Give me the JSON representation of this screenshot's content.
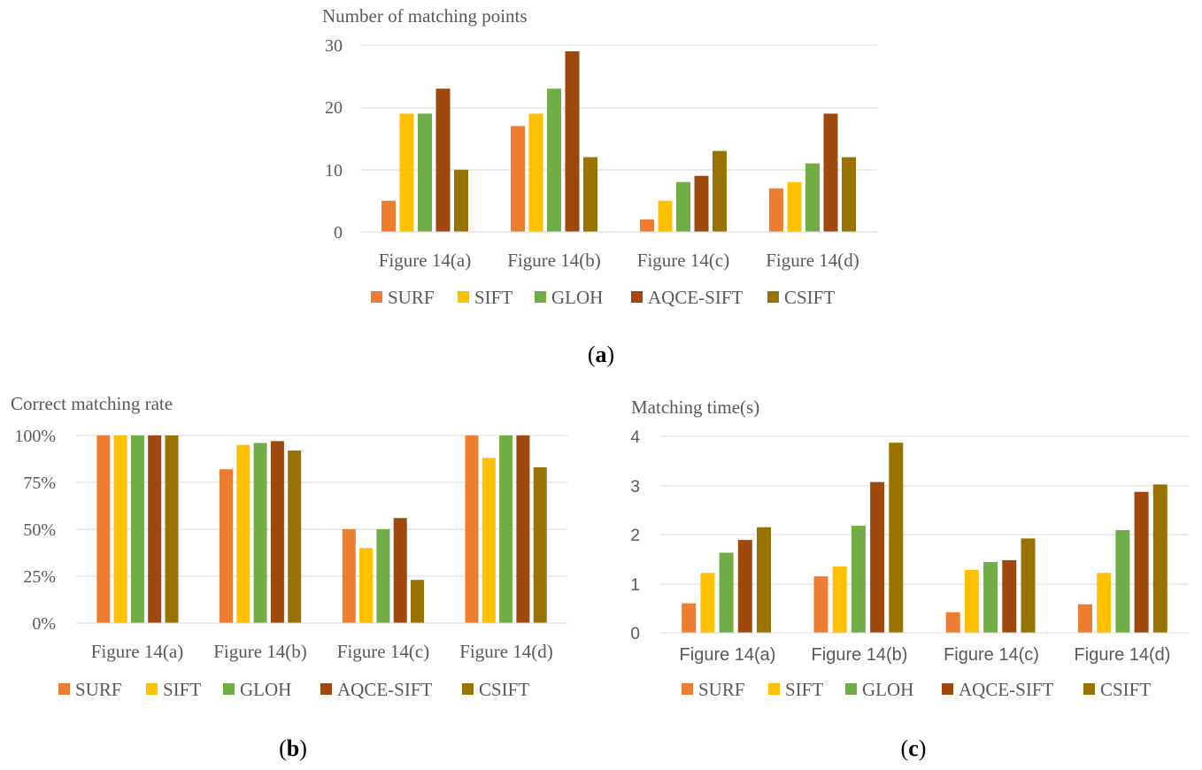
{
  "chart_data": [
    {
      "id": "a",
      "type": "bar",
      "title": "Number of matching points",
      "caption_letter": "a",
      "categories": [
        "Figure 14(a)",
        "Figure 14(b)",
        "Figure 14(c)",
        "Figure 14(d)"
      ],
      "yticks": [
        "0",
        "10",
        "20",
        "30"
      ],
      "ylim": [
        0,
        30
      ],
      "series": [
        {
          "name": "SURF",
          "color": "#ED7D31",
          "values": [
            5,
            17,
            2,
            7
          ]
        },
        {
          "name": "SIFT",
          "color": "#FFC000",
          "values": [
            19,
            19,
            5,
            8
          ]
        },
        {
          "name": "GLOH",
          "color": "#70AD47",
          "values": [
            19,
            23,
            8,
            11
          ]
        },
        {
          "name": "AQCE-SIFT",
          "color": "#9E480E",
          "values": [
            23,
            29,
            9,
            19
          ]
        },
        {
          "name": "CSIFT",
          "color": "#997300",
          "values": [
            10,
            12,
            13,
            12
          ]
        }
      ],
      "legend_position": "bottom",
      "grid": true
    },
    {
      "id": "b",
      "type": "bar",
      "title": "Correct matching rate",
      "caption_letter": "b",
      "categories": [
        "Figure 14(a)",
        "Figure 14(b)",
        "Figure 14(c)",
        "Figure 14(d)"
      ],
      "yticks": [
        "0%",
        "25%",
        "50%",
        "75%",
        "100%"
      ],
      "ylim": [
        0,
        100
      ],
      "series": [
        {
          "name": "SURF",
          "color": "#ED7D31",
          "values": [
            100,
            82,
            50,
            100
          ]
        },
        {
          "name": "SIFT",
          "color": "#FFC000",
          "values": [
            100,
            95,
            40,
            88
          ]
        },
        {
          "name": "GLOH",
          "color": "#70AD47",
          "values": [
            100,
            96,
            50,
            100
          ]
        },
        {
          "name": "AQCE-SIFT",
          "color": "#9E480E",
          "values": [
            100,
            97,
            56,
            100
          ]
        },
        {
          "name": "CSIFT",
          "color": "#997300",
          "values": [
            100,
            92,
            23,
            83
          ]
        }
      ],
      "legend_position": "bottom",
      "grid": true
    },
    {
      "id": "c",
      "type": "bar",
      "title": "Matching time(s)",
      "caption_letter": "c",
      "categories": [
        "Figure 14(a)",
        "Figure 14(b)",
        "Figure 14(c)",
        "Figure 14(d)"
      ],
      "yticks": [
        "0",
        "1",
        "2",
        "3",
        "4"
      ],
      "ylim": [
        0,
        4
      ],
      "series": [
        {
          "name": "SURF",
          "color": "#ED7D31",
          "values": [
            0.6,
            1.15,
            0.42,
            0.58
          ]
        },
        {
          "name": "SIFT",
          "color": "#FFC000",
          "values": [
            1.22,
            1.35,
            1.28,
            1.22
          ]
        },
        {
          "name": "GLOH",
          "color": "#70AD47",
          "values": [
            1.63,
            2.18,
            1.44,
            2.09
          ]
        },
        {
          "name": "AQCE-SIFT",
          "color": "#9E480E",
          "values": [
            1.89,
            3.07,
            1.48,
            2.87
          ]
        },
        {
          "name": "CSIFT",
          "color": "#997300",
          "values": [
            2.15,
            3.87,
            1.92,
            3.02
          ]
        }
      ],
      "legend_position": "bottom",
      "grid": true
    }
  ]
}
